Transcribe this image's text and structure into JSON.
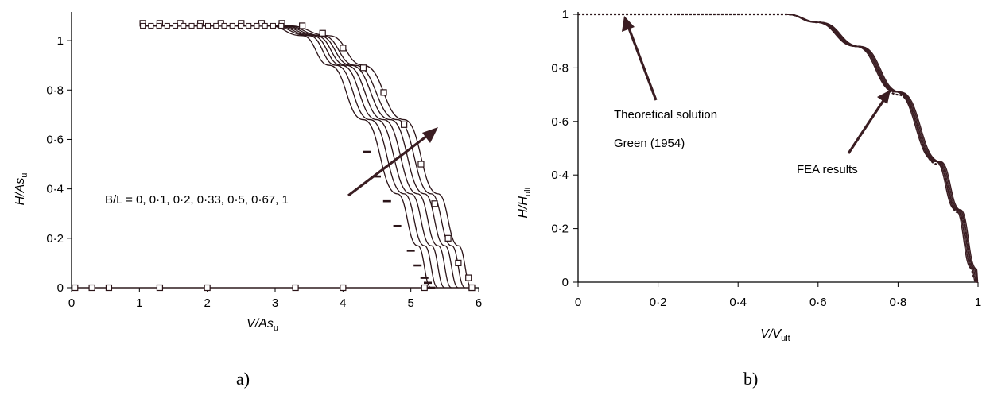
{
  "chart_data": [
    {
      "type": "line",
      "xlabel": "V/As",
      "xlabel_sub": "u",
      "ylabel": "H/As",
      "ylabel_sub": "u",
      "xlim": [
        0,
        6
      ],
      "ylim": [
        0,
        1.1
      ],
      "x_ticks": [
        "0",
        "1",
        "2",
        "3",
        "4",
        "5",
        "6"
      ],
      "y_ticks": [
        "0",
        "0·2",
        "0·4",
        "0·6",
        "0·8",
        "1"
      ],
      "annotation": "B/L = 0, 0·1, 0·2, 0·33, 0·5, 0·67, 1",
      "caption": "a)",
      "series": [
        {
          "name": "0",
          "values": [
            [
              1.05,
              1.06
            ],
            [
              2.9,
              1.06
            ],
            [
              3.4,
              1.02
            ],
            [
              3.8,
              0.9
            ],
            [
              4.3,
              0.68
            ],
            [
              4.8,
              0.38
            ],
            [
              5.1,
              0.17
            ],
            [
              5.3,
              0.0
            ]
          ]
        },
        {
          "name": "0·1",
          "values": [
            [
              1.05,
              1.06
            ],
            [
              2.95,
              1.06
            ],
            [
              3.5,
              1.02
            ],
            [
              3.9,
              0.9
            ],
            [
              4.4,
              0.68
            ],
            [
              4.9,
              0.38
            ],
            [
              5.2,
              0.17
            ],
            [
              5.4,
              0.0
            ]
          ]
        },
        {
          "name": "0·2",
          "values": [
            [
              1.05,
              1.06
            ],
            [
              3.0,
              1.06
            ],
            [
              3.55,
              1.02
            ],
            [
              3.98,
              0.9
            ],
            [
              4.5,
              0.68
            ],
            [
              5.0,
              0.38
            ],
            [
              5.3,
              0.17
            ],
            [
              5.5,
              0.0
            ]
          ]
        },
        {
          "name": "0·33",
          "values": [
            [
              1.05,
              1.06
            ],
            [
              3.05,
              1.06
            ],
            [
              3.6,
              1.02
            ],
            [
              4.05,
              0.9
            ],
            [
              4.6,
              0.68
            ],
            [
              5.1,
              0.38
            ],
            [
              5.4,
              0.17
            ],
            [
              5.6,
              0.0
            ]
          ]
        },
        {
          "name": "0·5",
          "values": [
            [
              1.05,
              1.06
            ],
            [
              3.1,
              1.06
            ],
            [
              3.65,
              1.02
            ],
            [
              4.12,
              0.9
            ],
            [
              4.7,
              0.68
            ],
            [
              5.2,
              0.38
            ],
            [
              5.5,
              0.17
            ],
            [
              5.7,
              0.0
            ]
          ]
        },
        {
          "name": "0·67",
          "values": [
            [
              1.05,
              1.06
            ],
            [
              3.15,
              1.06
            ],
            [
              3.7,
              1.02
            ],
            [
              4.18,
              0.9
            ],
            [
              4.8,
              0.68
            ],
            [
              5.3,
              0.38
            ],
            [
              5.6,
              0.17
            ],
            [
              5.8,
              0.0
            ]
          ]
        },
        {
          "name": "1",
          "values": [
            [
              1.05,
              1.06
            ],
            [
              3.2,
              1.06
            ],
            [
              3.8,
              1.02
            ],
            [
              4.3,
              0.9
            ],
            [
              4.9,
              0.68
            ],
            [
              5.4,
              0.38
            ],
            [
              5.7,
              0.17
            ],
            [
              5.9,
              0.0
            ]
          ]
        }
      ],
      "dash_markers": [
        [
          4.35,
          0.55
        ],
        [
          4.5,
          0.45
        ],
        [
          4.65,
          0.35
        ],
        [
          4.8,
          0.25
        ],
        [
          5.0,
          0.15
        ],
        [
          5.1,
          0.09
        ],
        [
          5.2,
          0.04
        ],
        [
          5.25,
          0.02
        ],
        [
          5.3,
          0.0
        ]
      ],
      "square_markers_curve": [
        [
          1.05,
          1.07
        ],
        [
          1.3,
          1.07
        ],
        [
          1.6,
          1.07
        ],
        [
          1.9,
          1.07
        ],
        [
          2.2,
          1.07
        ],
        [
          2.5,
          1.07
        ],
        [
          2.8,
          1.07
        ],
        [
          3.1,
          1.07
        ],
        [
          3.4,
          1.06
        ],
        [
          3.7,
          1.03
        ],
        [
          4.0,
          0.97
        ],
        [
          4.3,
          0.89
        ],
        [
          4.6,
          0.79
        ],
        [
          4.9,
          0.66
        ],
        [
          5.15,
          0.5
        ],
        [
          5.35,
          0.34
        ],
        [
          5.55,
          0.2
        ],
        [
          5.7,
          0.1
        ],
        [
          5.85,
          0.04
        ],
        [
          5.9,
          0.0
        ]
      ],
      "square_markers_axis": [
        0.05,
        0.3,
        0.55,
        1.3,
        2.0,
        3.3,
        4.0,
        5.2,
        5.9
      ]
    },
    {
      "type": "line",
      "xlabel": "V/V",
      "xlabel_sub": "ult",
      "ylabel": "H/H",
      "ylabel_sub": "ult",
      "xlim": [
        0,
        1
      ],
      "ylim": [
        0,
        1
      ],
      "x_ticks": [
        "0",
        "0·2",
        "0·4",
        "0·6",
        "0·8",
        "1"
      ],
      "y_ticks": [
        "0",
        "0·2",
        "0·4",
        "0·6",
        "0·8",
        "1"
      ],
      "annotation_1": "Theoretical solution",
      "annotation_2": "Green (1954)",
      "annotation_3": "FEA results",
      "caption": "b)",
      "series": [
        {
          "name": "Theoretical solution",
          "values": [
            [
              0,
              1
            ],
            [
              0.52,
              1
            ],
            [
              0.6,
              0.97
            ],
            [
              0.7,
              0.88
            ],
            [
              0.8,
              0.7
            ],
            [
              0.9,
              0.44
            ],
            [
              0.95,
              0.26
            ],
            [
              1.0,
              0.0
            ]
          ]
        },
        {
          "name": "FEA results",
          "values": [
            [
              0.52,
              1
            ],
            [
              0.6,
              0.97
            ],
            [
              0.7,
              0.88
            ],
            [
              0.8,
              0.71
            ],
            [
              0.9,
              0.45
            ],
            [
              0.95,
              0.27
            ],
            [
              0.99,
              0.05
            ],
            [
              1.0,
              0.0
            ]
          ]
        }
      ]
    }
  ]
}
